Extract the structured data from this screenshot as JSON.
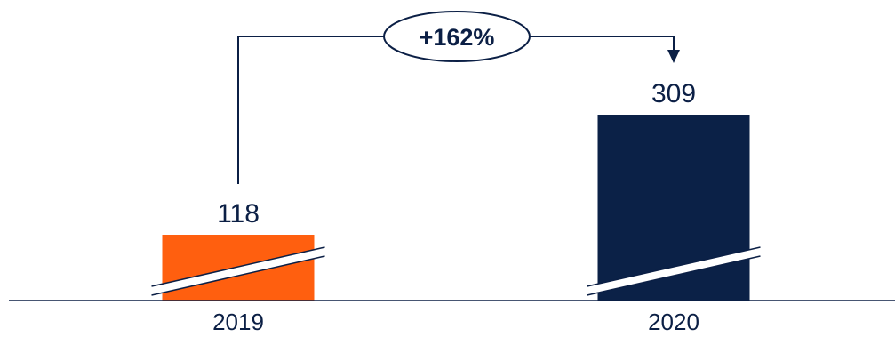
{
  "chart_data": {
    "type": "bar",
    "categories": [
      "2019",
      "2020"
    ],
    "values": [
      118,
      309
    ],
    "value_labels": [
      "118",
      "309"
    ],
    "axis_break": true,
    "annotation": {
      "text": "+162%",
      "from": "2019",
      "to": "2020"
    },
    "colors": [
      "#ff5f0f",
      "#0b2147"
    ],
    "line_color": "#0b1f45",
    "title": "",
    "xlabel": "",
    "ylabel": ""
  }
}
